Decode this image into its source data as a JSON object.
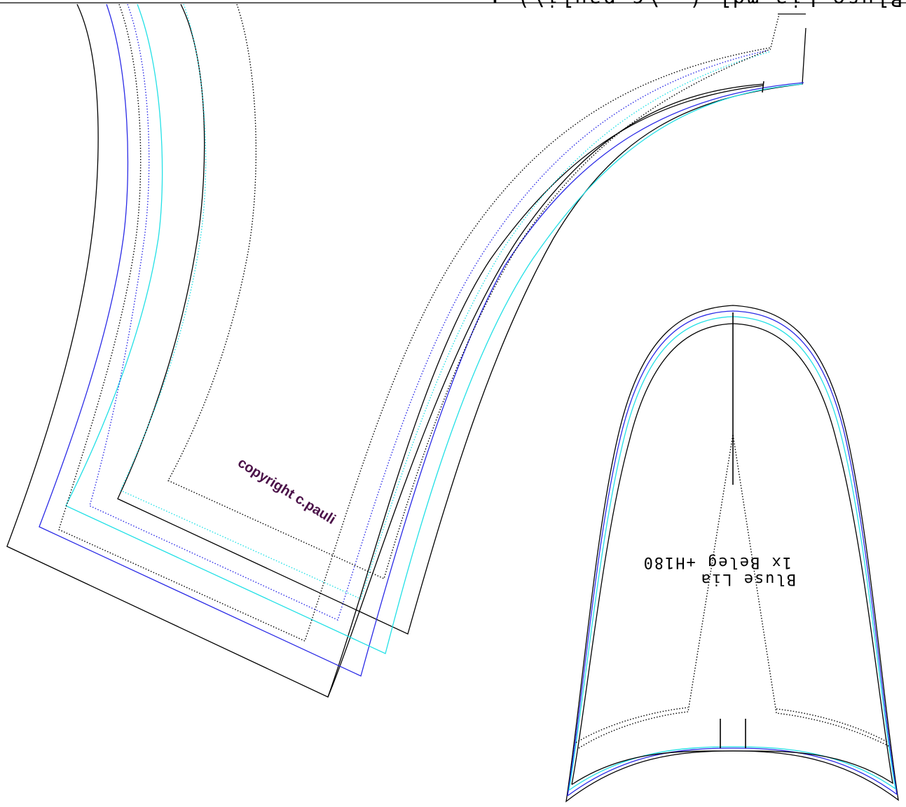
{
  "header": {
    "file_label": "Bluse Lia.mdl  (..\\c pauli\\)  :"
  },
  "piece_label": {
    "line1": "Bluse Lia",
    "line2": "1x Beleg +H180"
  },
  "watermark": {
    "text": "copyright c.pauli"
  },
  "colors": {
    "outline": "#000000",
    "size_blue": "#2a2ae6",
    "size_cyan": "#22e0e6",
    "watermark": "#4a1048",
    "background": "#ffffff"
  }
}
